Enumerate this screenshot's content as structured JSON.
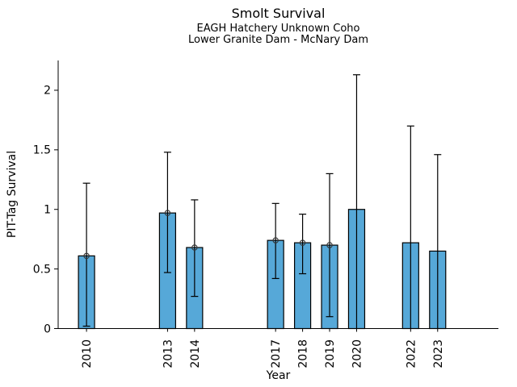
{
  "figure": {
    "title": "Smolt Survival",
    "subtitle1": "EAGH Hatchery Unknown Coho",
    "subtitle2": "Lower Granite Dam - McNary Dam",
    "xlabel": "Year",
    "ylabel": "PIT-Tag Survival"
  },
  "colors": {
    "background": "#ffffff",
    "bar_fill": "#56a8d8",
    "bar_edge": "#000000",
    "error_bar": "#000000",
    "marker_stroke": "#333333",
    "axis": "#000000",
    "text": "#000000"
  },
  "chart_data": {
    "type": "bar",
    "title": "Smolt Survival",
    "subtitle": [
      "EAGH Hatchery Unknown Coho",
      "Lower Granite Dam - McNary Dam"
    ],
    "xlabel": "Year",
    "ylabel": "PIT-Tag Survival",
    "categories": [
      2010,
      2013,
      2014,
      2017,
      2018,
      2019,
      2020,
      2022,
      2023
    ],
    "series": [
      {
        "name": "PIT-Tag Survival",
        "values": [
          0.61,
          0.97,
          0.68,
          0.74,
          0.72,
          0.7,
          1.0,
          0.72,
          0.65
        ],
        "error_low": [
          0.02,
          0.47,
          0.27,
          0.42,
          0.46,
          0.1,
          0.0,
          0.0,
          0.0
        ],
        "error_high": [
          1.22,
          1.48,
          1.08,
          1.05,
          0.96,
          1.3,
          2.13,
          1.7,
          1.46
        ],
        "point_marker": [
          true,
          true,
          true,
          true,
          true,
          true,
          false,
          false,
          false
        ]
      }
    ],
    "yticks": [
      0,
      0.5,
      1,
      1.5,
      2
    ],
    "ytick_labels": [
      "0",
      "0.5",
      "1",
      "1.5",
      "2"
    ],
    "xtick_labels": [
      "2010",
      "2013",
      "2014",
      "2017",
      "2018",
      "2019",
      "2020",
      "2022",
      "2023"
    ],
    "xlim": [
      2008.95,
      2025.25
    ],
    "ylim": [
      0,
      2.25
    ],
    "grid": false,
    "legend": null
  }
}
